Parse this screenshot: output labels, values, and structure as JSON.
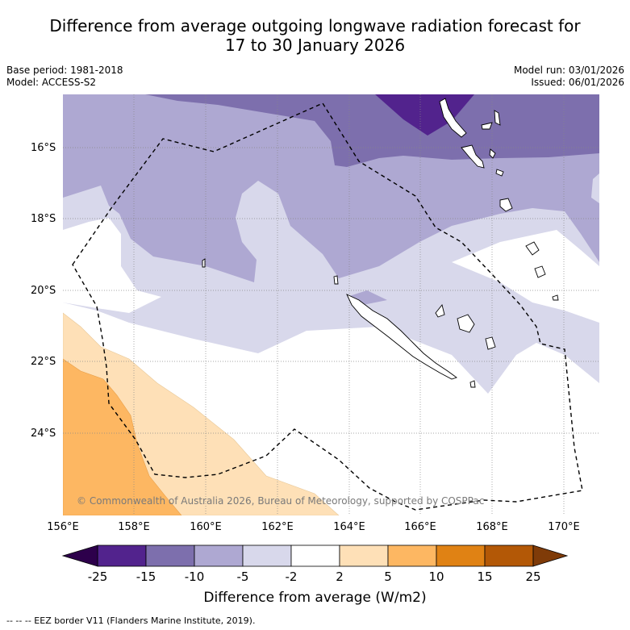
{
  "title_line1": "Difference from average outgoing longwave radiation forecast for",
  "title_line2": "17 to 30 January 2026",
  "base_period": "Base period: 1981-2018",
  "model": "Model: ACCESS-S2",
  "model_run": "Model run: 03/01/2026",
  "issued": "Issued: 06/01/2026",
  "lat_labels": [
    "16°S",
    "18°S",
    "20°S",
    "22°S",
    "24°S"
  ],
  "lon_labels": [
    "156°E",
    "158°E",
    "160°E",
    "162°E",
    "164°E",
    "166°E",
    "168°E",
    "170°E"
  ],
  "copyright": "© Commonwealth of Australia 2026, Bureau of Meteorology, supported by COSPPac",
  "colorbar": {
    "labels": [
      "-25",
      "-15",
      "-10",
      "-5",
      "-2",
      "2",
      "5",
      "10",
      "15",
      "25"
    ],
    "colors": [
      "#52238d",
      "#7d6fad",
      "#aea8d2",
      "#d8d8eb",
      "#ffffff",
      "#fee0b7",
      "#fdb762",
      "#e08214",
      "#b35806"
    ],
    "under_color": "#2d004b",
    "over_color": "#7f3b08",
    "title": "Difference from average (W/m2)"
  },
  "legend_text": "--  --  -- EEZ border V11 (Flanders Marine Institute, 2019)."
}
